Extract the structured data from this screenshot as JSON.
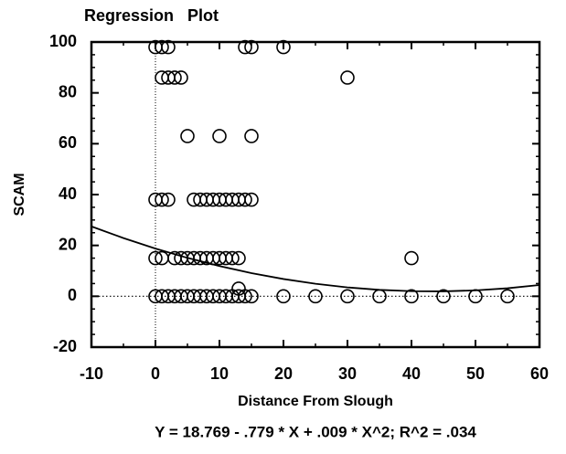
{
  "chart_data": {
    "type": "scatter",
    "title": "Regression   Plot",
    "xlabel": "Distance From Slough",
    "ylabel": "SCAM",
    "annotation": "Y = 18.769 - .779 * X + .009 * X^2; R^2 = .034",
    "xlim": [
      -10,
      60
    ],
    "ylim": [
      -20,
      100
    ],
    "xticks": [
      -10,
      0,
      10,
      20,
      30,
      40,
      50,
      60
    ],
    "yticks": [
      -20,
      0,
      20,
      40,
      60,
      80,
      100
    ],
    "color": "#000000",
    "series": [
      {
        "type": "scatter",
        "x": [
          0,
          1,
          2,
          14,
          15,
          20,
          1,
          2,
          3,
          4,
          30,
          5,
          10,
          15,
          0,
          1,
          2,
          6,
          7,
          8,
          9,
          10,
          11,
          12,
          13,
          14,
          15,
          0,
          1,
          3,
          4,
          5,
          6,
          7,
          8,
          9,
          10,
          11,
          12,
          13,
          40,
          0,
          1,
          2,
          3,
          4,
          5,
          6,
          7,
          8,
          9,
          10,
          11,
          12,
          13,
          14,
          15,
          20,
          25,
          30,
          35,
          40,
          45,
          50,
          55,
          13
        ],
        "values": [
          98,
          98,
          98,
          98,
          98,
          98,
          86,
          86,
          86,
          86,
          86,
          63,
          63,
          63,
          38,
          38,
          38,
          38,
          38,
          38,
          38,
          38,
          38,
          38,
          38,
          38,
          38,
          15,
          15,
          15,
          15,
          15,
          15,
          15,
          15,
          15,
          15,
          15,
          15,
          15,
          15,
          0,
          0,
          0,
          0,
          0,
          0,
          0,
          0,
          0,
          0,
          0,
          0,
          0,
          0,
          0,
          0,
          0,
          0,
          0,
          0,
          0,
          0,
          0,
          0,
          3
        ]
      },
      {
        "type": "line",
        "x": [
          -10,
          -5,
          0,
          5,
          10,
          15,
          20,
          25,
          30,
          35,
          40,
          45,
          50,
          55,
          60
        ],
        "values": [
          27.46,
          22.89,
          18.77,
          15.1,
          11.88,
          9.11,
          6.79,
          4.92,
          3.5,
          2.53,
          2.01,
          1.94,
          2.32,
          3.15,
          4.43
        ]
      }
    ]
  }
}
